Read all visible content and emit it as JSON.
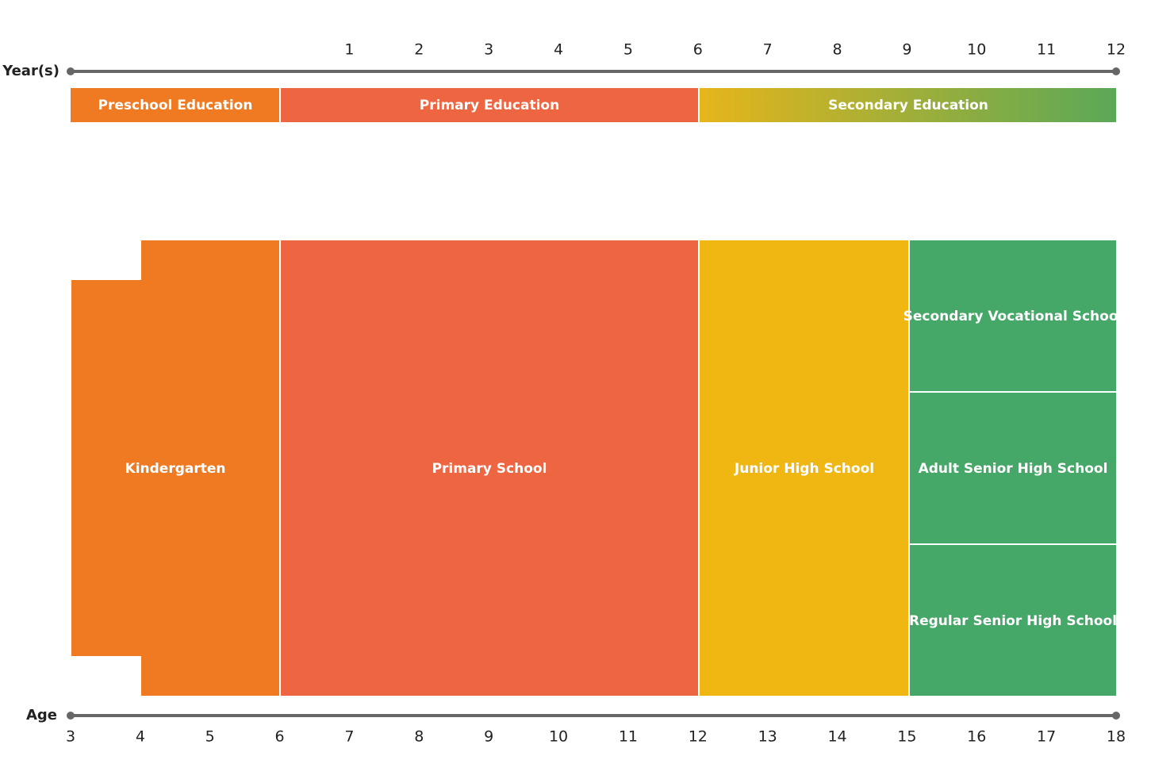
{
  "year_axis": {
    "label": "Year(s)",
    "ticks": [
      1,
      2,
      3,
      4,
      5,
      6,
      7,
      8,
      9,
      10,
      11,
      12
    ]
  },
  "age_axis": {
    "label": "Age",
    "ticks": [
      3,
      4,
      5,
      6,
      7,
      8,
      9,
      10,
      11,
      12,
      13,
      14,
      15,
      16,
      17,
      18
    ]
  },
  "stages": [
    {
      "label": "Preschool Education"
    },
    {
      "label": "Primary Education"
    },
    {
      "label": "Secondary Education"
    }
  ],
  "schools": [
    {
      "label": "Kindergarten"
    },
    {
      "label": "Primary School"
    },
    {
      "label": "Junior High School"
    },
    {
      "label": "Secondary Vocational School"
    },
    {
      "label": "Adult Senior High School"
    },
    {
      "label": "Regular Senior High School"
    }
  ]
}
